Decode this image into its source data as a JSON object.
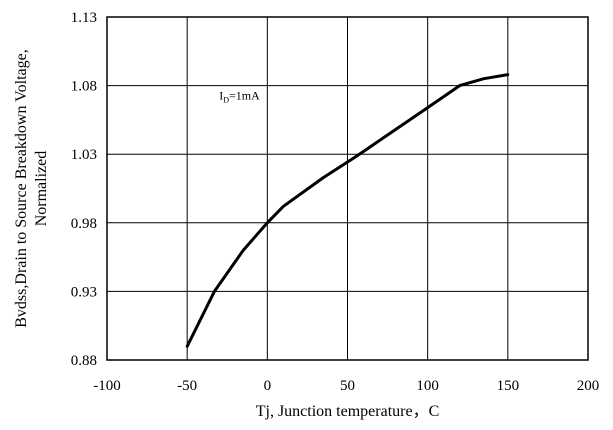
{
  "chart_data": {
    "type": "line",
    "title": "",
    "xlabel": "Tj, Junction temperature，C",
    "ylabel": "Bvdss,Drain to Source Breakdown Voltage,",
    "ylabel_line2": "Normalized",
    "xlim": [
      -100,
      200
    ],
    "ylim": [
      0.88,
      1.13
    ],
    "xticks": [
      -100,
      -50,
      0,
      50,
      100,
      150,
      200
    ],
    "yticks": [
      0.88,
      0.93,
      0.98,
      1.03,
      1.08,
      1.13
    ],
    "xtick_labels": [
      "-100",
      "-50",
      "0",
      "50",
      "100",
      "150",
      "200"
    ],
    "ytick_labels": [
      "0.88",
      "0.93",
      "0.98",
      "1.03",
      "1.08",
      "1.13"
    ],
    "grid": true,
    "legend": "none",
    "annotation": {
      "main": "I",
      "sub": "D",
      "rest": "=1mA",
      "x": -30,
      "y": 1.07
    },
    "series": [
      {
        "color": "#000000",
        "x": [
          -50,
          -33,
          -15,
          0,
          10,
          35,
          55,
          80,
          100,
          120,
          135,
          150
        ],
        "y": [
          0.89,
          0.93,
          0.96,
          0.98,
          0.992,
          1.013,
          1.028,
          1.048,
          1.064,
          1.08,
          1.085,
          1.088
        ]
      }
    ]
  }
}
